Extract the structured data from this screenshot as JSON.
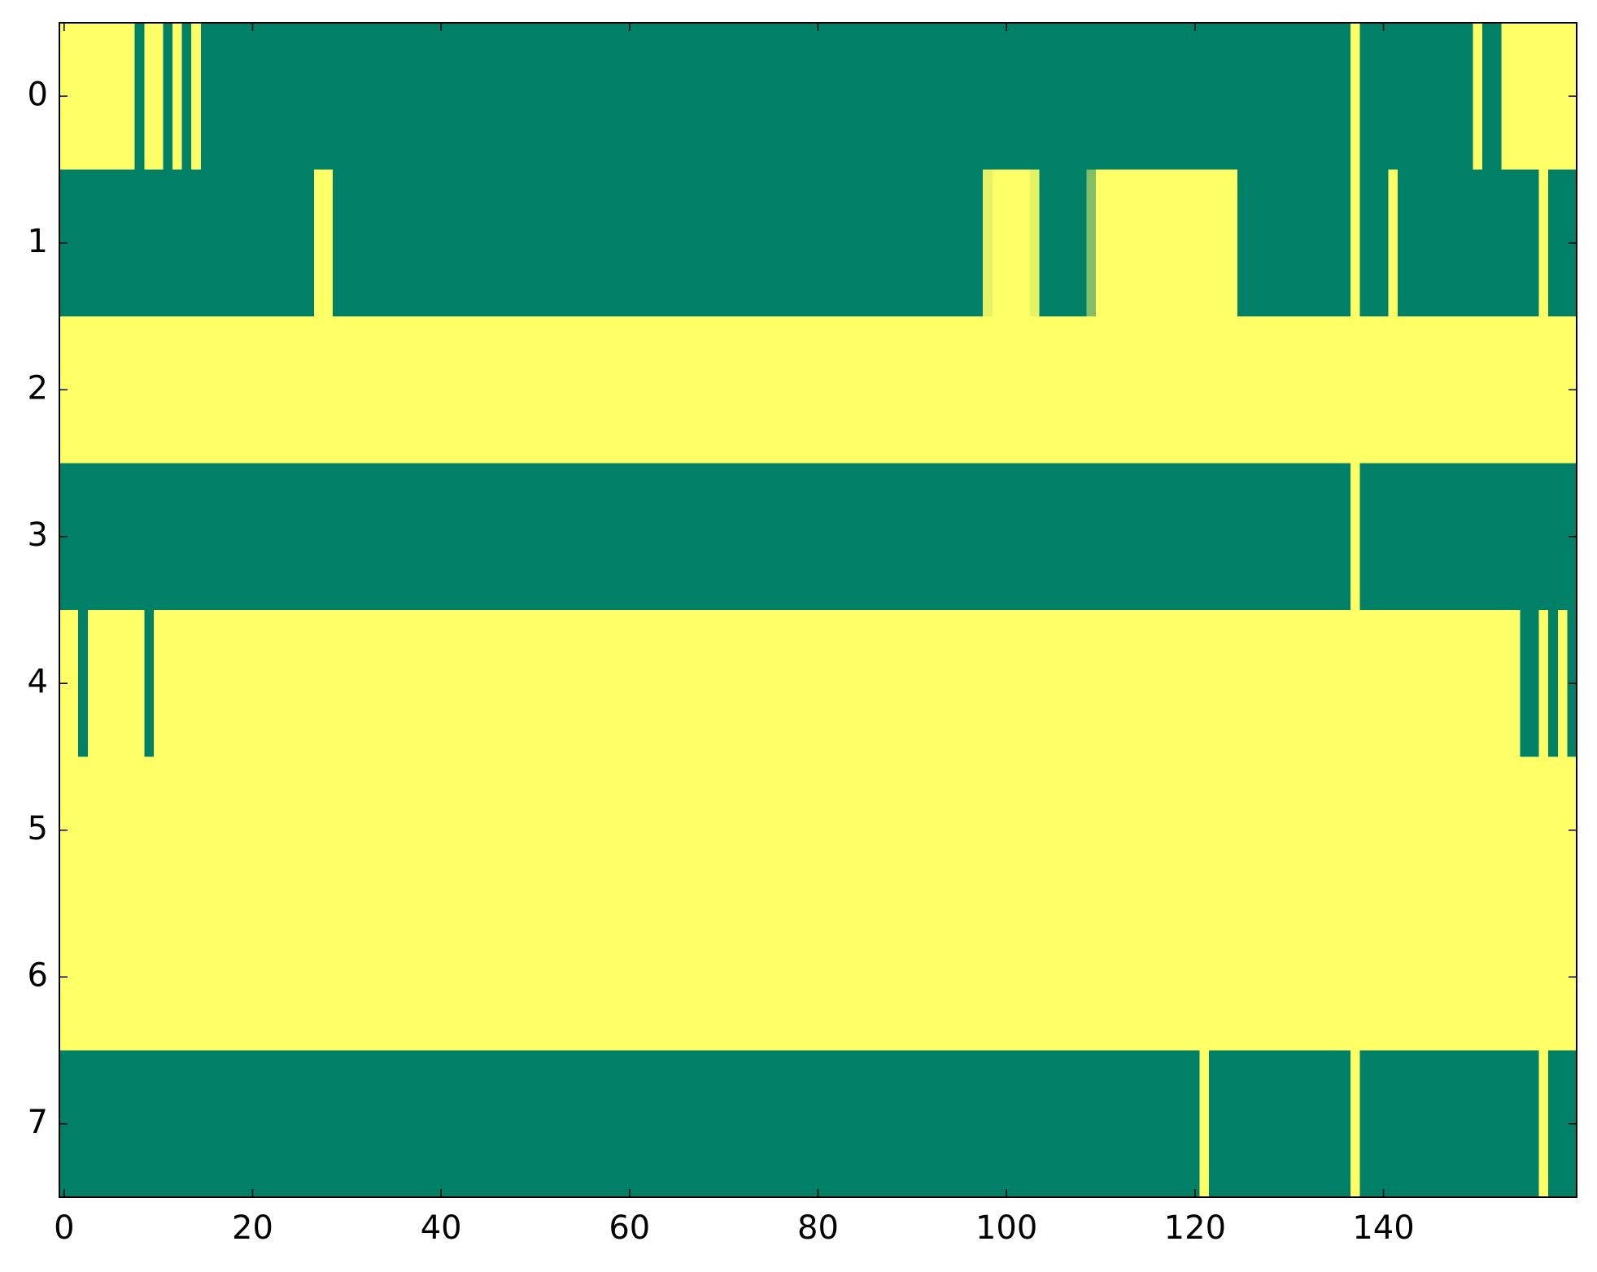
{
  "chart_data": {
    "type": "heatmap",
    "colormap": "summer",
    "xlim": [
      -0.5,
      160.5
    ],
    "ylim": [
      7.5,
      -0.5
    ],
    "xticks": [
      0,
      20,
      40,
      60,
      80,
      100,
      120,
      140
    ],
    "yticks": [
      0,
      1,
      2,
      3,
      4,
      5,
      6,
      7
    ],
    "z": [
      [
        1,
        1,
        1,
        1,
        1,
        1,
        1,
        1,
        0,
        1,
        1,
        0,
        1,
        0,
        1,
        0,
        0,
        0,
        0,
        0,
        0,
        0,
        0,
        0,
        0,
        0,
        0,
        0,
        0,
        0,
        0,
        0,
        0,
        0,
        0,
        0,
        0,
        0,
        0,
        0,
        0,
        0,
        0,
        0,
        0,
        0,
        0,
        0,
        0,
        0,
        0,
        0,
        0,
        0,
        0,
        0,
        0,
        0,
        0,
        0,
        0,
        0,
        0,
        0,
        0,
        0,
        0,
        0,
        0,
        0,
        0,
        0,
        0,
        0,
        0,
        0,
        0,
        0,
        0,
        0,
        0,
        0,
        0,
        0,
        0,
        0,
        0,
        0,
        0,
        0,
        0,
        0,
        0,
        0,
        0,
        0,
        0,
        0,
        0,
        0,
        0,
        0,
        0,
        0,
        0,
        0,
        0,
        0,
        0,
        0,
        0,
        0,
        0,
        0,
        0,
        0,
        0,
        0,
        0,
        0,
        0,
        0,
        0,
        0,
        0,
        0,
        0,
        0,
        0,
        0,
        0,
        0,
        0,
        0,
        0,
        0,
        0,
        1,
        0,
        0,
        0,
        0,
        0,
        0,
        0,
        0,
        0,
        0,
        0,
        0,
        1,
        0,
        0,
        1,
        1,
        1,
        1,
        1,
        1,
        1,
        1
      ],
      [
        0,
        0,
        0,
        0,
        0,
        0,
        0,
        0,
        0,
        0,
        0,
        0,
        0,
        0,
        0,
        0,
        0,
        0,
        0,
        0,
        0,
        0,
        0,
        0,
        0,
        0,
        0,
        1,
        1,
        0,
        0,
        0,
        0,
        0,
        0,
        0,
        0,
        0,
        0,
        0,
        0,
        0,
        0,
        0,
        0,
        0,
        0,
        0,
        0,
        0,
        0,
        0,
        0,
        0,
        0,
        0,
        0,
        0,
        0,
        0,
        0,
        0,
        0,
        0,
        0,
        0,
        0,
        0,
        0,
        0,
        0,
        0,
        0,
        0,
        0,
        0,
        0,
        0,
        0,
        0,
        0,
        0,
        0,
        0,
        0,
        0,
        0,
        0,
        0,
        0,
        0,
        0,
        0,
        0,
        0,
        0,
        0,
        0,
        0.9,
        1,
        1,
        1,
        1,
        0.9,
        0,
        0,
        0,
        0,
        0,
        0.5,
        1,
        1,
        1,
        1,
        1,
        1,
        1,
        1,
        1,
        1,
        1,
        1,
        1,
        1,
        1,
        0,
        0,
        0,
        0,
        0,
        0,
        0,
        0,
        0,
        0,
        0,
        0,
        1,
        0,
        0,
        0,
        1,
        0,
        0,
        0,
        0,
        0,
        0,
        0,
        0,
        0,
        0,
        0,
        0,
        0,
        0,
        0,
        1,
        0,
        0,
        0
      ],
      [
        1,
        1,
        1,
        1,
        1,
        1,
        1,
        1,
        1,
        1,
        1,
        1,
        1,
        1,
        1,
        1,
        1,
        1,
        1,
        1,
        1,
        1,
        1,
        1,
        1,
        1,
        1,
        1,
        1,
        1,
        1,
        1,
        1,
        1,
        1,
        1,
        1,
        1,
        1,
        1,
        1,
        1,
        1,
        1,
        1,
        1,
        1,
        1,
        1,
        1,
        1,
        1,
        1,
        1,
        1,
        1,
        1,
        1,
        1,
        1,
        1,
        1,
        1,
        1,
        1,
        1,
        1,
        1,
        1,
        1,
        1,
        1,
        1,
        1,
        1,
        1,
        1,
        1,
        1,
        1,
        1,
        1,
        1,
        1,
        1,
        1,
        1,
        1,
        1,
        1,
        1,
        1,
        1,
        1,
        1,
        1,
        1,
        1,
        1,
        1,
        1,
        1,
        1,
        1,
        1,
        1,
        1,
        1,
        1,
        1,
        1,
        1,
        1,
        1,
        1,
        1,
        1,
        1,
        1,
        1,
        1,
        1,
        1,
        1,
        1,
        1,
        1,
        1,
        1,
        1,
        1,
        1,
        1,
        1,
        1,
        1,
        1,
        1,
        1,
        1,
        1,
        1,
        1,
        1,
        1,
        1,
        1,
        1,
        1,
        1,
        1,
        1,
        1,
        1,
        1,
        1,
        1,
        1,
        1,
        1,
        1
      ],
      [
        0,
        0,
        0,
        0,
        0,
        0,
        0,
        0,
        0,
        0,
        0,
        0,
        0,
        0,
        0,
        0,
        0,
        0,
        0,
        0,
        0,
        0,
        0,
        0,
        0,
        0,
        0,
        0,
        0,
        0,
        0,
        0,
        0,
        0,
        0,
        0,
        0,
        0,
        0,
        0,
        0,
        0,
        0,
        0,
        0,
        0,
        0,
        0,
        0,
        0,
        0,
        0,
        0,
        0,
        0,
        0,
        0,
        0,
        0,
        0,
        0,
        0,
        0,
        0,
        0,
        0,
        0,
        0,
        0,
        0,
        0,
        0,
        0,
        0,
        0,
        0,
        0,
        0,
        0,
        0,
        0,
        0,
        0,
        0,
        0,
        0,
        0,
        0,
        0,
        0,
        0,
        0,
        0,
        0,
        0,
        0,
        0,
        0,
        0,
        0,
        0,
        0,
        0,
        0,
        0,
        0,
        0,
        0,
        0,
        0,
        0,
        0,
        0,
        0,
        0,
        0,
        0,
        0,
        0,
        0,
        0,
        0,
        0,
        0,
        0,
        0,
        0,
        0,
        0,
        0,
        0,
        0,
        0,
        0,
        0,
        0,
        0,
        1,
        0,
        0,
        0,
        0,
        0,
        0,
        0,
        0,
        0,
        0,
        0,
        0,
        0,
        0,
        0,
        0,
        0,
        0,
        0,
        0,
        0,
        0,
        0
      ],
      [
        1,
        1,
        0,
        1,
        1,
        1,
        1,
        1,
        1,
        0,
        1,
        1,
        1,
        1,
        1,
        1,
        1,
        1,
        1,
        1,
        1,
        1,
        1,
        1,
        1,
        1,
        1,
        1,
        1,
        1,
        1,
        1,
        1,
        1,
        1,
        1,
        1,
        1,
        1,
        1,
        1,
        1,
        1,
        1,
        1,
        1,
        1,
        1,
        1,
        1,
        1,
        1,
        1,
        1,
        1,
        1,
        1,
        1,
        1,
        1,
        1,
        1,
        1,
        1,
        1,
        1,
        1,
        1,
        1,
        1,
        1,
        1,
        1,
        1,
        1,
        1,
        1,
        1,
        1,
        1,
        1,
        1,
        1,
        1,
        1,
        1,
        1,
        1,
        1,
        1,
        1,
        1,
        1,
        1,
        1,
        1,
        1,
        1,
        1,
        1,
        1,
        1,
        1,
        1,
        1,
        1,
        1,
        1,
        1,
        1,
        1,
        1,
        1,
        1,
        1,
        1,
        1,
        1,
        1,
        1,
        1,
        1,
        1,
        1,
        1,
        1,
        1,
        1,
        1,
        1,
        1,
        1,
        1,
        1,
        1,
        1,
        1,
        1,
        1,
        1,
        1,
        1,
        1,
        1,
        1,
        1,
        1,
        1,
        1,
        1,
        1,
        1,
        1,
        1,
        1,
        0,
        0,
        1,
        0,
        1,
        0
      ],
      [
        1,
        1,
        1,
        1,
        1,
        1,
        1,
        1,
        1,
        1,
        1,
        1,
        1,
        1,
        1,
        1,
        1,
        1,
        1,
        1,
        1,
        1,
        1,
        1,
        1,
        1,
        1,
        1,
        1,
        1,
        1,
        1,
        1,
        1,
        1,
        1,
        1,
        1,
        1,
        1,
        1,
        1,
        1,
        1,
        1,
        1,
        1,
        1,
        1,
        1,
        1,
        1,
        1,
        1,
        1,
        1,
        1,
        1,
        1,
        1,
        1,
        1,
        1,
        1,
        1,
        1,
        1,
        1,
        1,
        1,
        1,
        1,
        1,
        1,
        1,
        1,
        1,
        1,
        1,
        1,
        1,
        1,
        1,
        1,
        1,
        1,
        1,
        1,
        1,
        1,
        1,
        1,
        1,
        1,
        1,
        1,
        1,
        1,
        1,
        1,
        1,
        1,
        1,
        1,
        1,
        1,
        1,
        1,
        1,
        1,
        1,
        1,
        1,
        1,
        1,
        1,
        1,
        1,
        1,
        1,
        1,
        1,
        1,
        1,
        1,
        1,
        1,
        1,
        1,
        1,
        1,
        1,
        1,
        1,
        1,
        1,
        1,
        1,
        1,
        1,
        1,
        1,
        1,
        1,
        1,
        1,
        1,
        1,
        1,
        1,
        1,
        1,
        1,
        1,
        1,
        1,
        1,
        1,
        1,
        1,
        1
      ],
      [
        1,
        1,
        1,
        1,
        1,
        1,
        1,
        1,
        1,
        1,
        1,
        1,
        1,
        1,
        1,
        1,
        1,
        1,
        1,
        1,
        1,
        1,
        1,
        1,
        1,
        1,
        1,
        1,
        1,
        1,
        1,
        1,
        1,
        1,
        1,
        1,
        1,
        1,
        1,
        1,
        1,
        1,
        1,
        1,
        1,
        1,
        1,
        1,
        1,
        1,
        1,
        1,
        1,
        1,
        1,
        1,
        1,
        1,
        1,
        1,
        1,
        1,
        1,
        1,
        1,
        1,
        1,
        1,
        1,
        1,
        1,
        1,
        1,
        1,
        1,
        1,
        1,
        1,
        1,
        1,
        1,
        1,
        1,
        1,
        1,
        1,
        1,
        1,
        1,
        1,
        1,
        1,
        1,
        1,
        1,
        1,
        1,
        1,
        1,
        1,
        1,
        1,
        1,
        1,
        1,
        1,
        1,
        1,
        1,
        1,
        1,
        1,
        1,
        1,
        1,
        1,
        1,
        1,
        1,
        1,
        1,
        1,
        1,
        1,
        1,
        1,
        1,
        1,
        1,
        1,
        1,
        1,
        1,
        1,
        1,
        1,
        1,
        1,
        1,
        1,
        1,
        1,
        1,
        1,
        1,
        1,
        1,
        1,
        1,
        1,
        1,
        1,
        1,
        1,
        1,
        1,
        1,
        1,
        1,
        1,
        1
      ],
      [
        0,
        0,
        0,
        0,
        0,
        0,
        0,
        0,
        0,
        0,
        0,
        0,
        0,
        0,
        0,
        0,
        0,
        0,
        0,
        0,
        0,
        0,
        0,
        0,
        0,
        0,
        0,
        0,
        0,
        0,
        0,
        0,
        0,
        0,
        0,
        0,
        0,
        0,
        0,
        0,
        0,
        0,
        0,
        0,
        0,
        0,
        0,
        0,
        0,
        0,
        0,
        0,
        0,
        0,
        0,
        0,
        0,
        0,
        0,
        0,
        0,
        0,
        0,
        0,
        0,
        0,
        0,
        0,
        0,
        0,
        0,
        0,
        0,
        0,
        0,
        0,
        0,
        0,
        0,
        0,
        0,
        0,
        0,
        0,
        0,
        0,
        0,
        0,
        0,
        0,
        0,
        0,
        0,
        0,
        0,
        0,
        0,
        0,
        0,
        0,
        0,
        0,
        0,
        0,
        0,
        0,
        0,
        0,
        0,
        0,
        0,
        0,
        0,
        0,
        0,
        0,
        0,
        0,
        0,
        0,
        0,
        1,
        0,
        0,
        0,
        0,
        0,
        0,
        0,
        0,
        0,
        0,
        0,
        0,
        0,
        0,
        0,
        1,
        0,
        0,
        0,
        0,
        0,
        0,
        0,
        0,
        0,
        0,
        0,
        0,
        0,
        0,
        0,
        0,
        0,
        0,
        0,
        1,
        0,
        0,
        0
      ]
    ]
  }
}
